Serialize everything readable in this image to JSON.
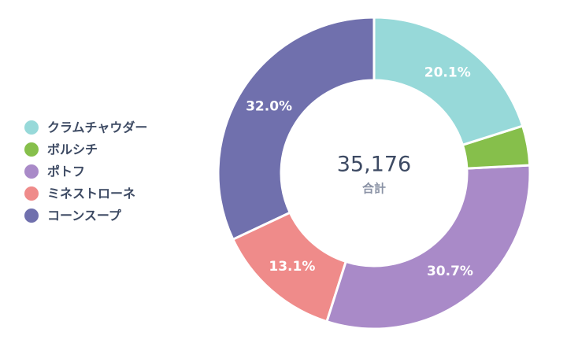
{
  "chart_data": {
    "type": "donut",
    "categories": [
      "クラムチャウダー",
      "ボルシチ",
      "ポトフ",
      "ミネストローネ",
      "コーンスープ"
    ],
    "values": [
      20.1,
      4.1,
      30.7,
      13.1,
      32.0
    ],
    "value_labels": [
      "20.1%",
      null,
      "30.7%",
      "13.1%",
      "32.0%"
    ],
    "colors": [
      "#97d9d9",
      "#86bf4b",
      "#a98ac8",
      "#ef8b8a",
      "#7070ad"
    ],
    "total_label": "35,176",
    "center_label": "合計",
    "legend": "left"
  }
}
